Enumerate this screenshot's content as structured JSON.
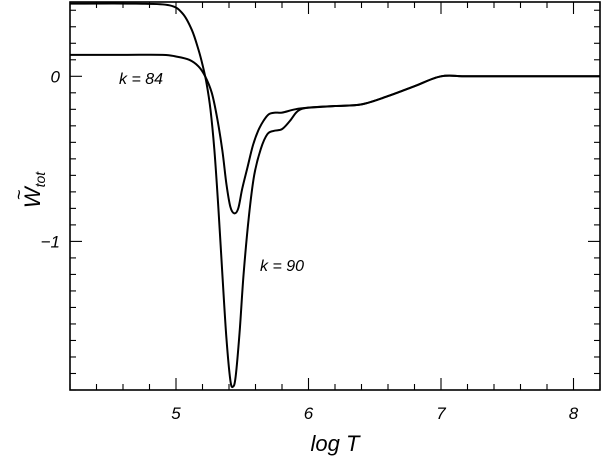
{
  "chart_data": {
    "type": "line",
    "xlabel": "log T",
    "ylabel_main": "W",
    "ylabel_sub": "tot",
    "xlim": [
      4.2,
      8.2
    ],
    "ylim": [
      -1.9,
      0.45
    ],
    "x_ticks": [
      5,
      6,
      7,
      8
    ],
    "y_ticks": [
      {
        "value": 0,
        "label": "0"
      },
      {
        "value": -1,
        "label": "−1"
      }
    ],
    "grid": false,
    "series": [
      {
        "name": "k = 84",
        "x": [
          4.2,
          4.6,
          4.9,
          5.0,
          5.1,
          5.17,
          5.22,
          5.27,
          5.31,
          5.35,
          5.38,
          5.41,
          5.44,
          5.47,
          5.5,
          5.54,
          5.58,
          5.62,
          5.66,
          5.7,
          5.75,
          5.8,
          5.9,
          6.0,
          6.2,
          6.4,
          6.6,
          6.8,
          7.0,
          7.2,
          7.6,
          8.2
        ],
        "y": [
          0.13,
          0.13,
          0.13,
          0.12,
          0.1,
          0.06,
          0.0,
          -0.1,
          -0.25,
          -0.45,
          -0.65,
          -0.79,
          -0.83,
          -0.8,
          -0.68,
          -0.55,
          -0.42,
          -0.33,
          -0.27,
          -0.23,
          -0.22,
          -0.22,
          -0.2,
          -0.19,
          -0.18,
          -0.17,
          -0.12,
          -0.06,
          0.0,
          0.0,
          0.0,
          0.0
        ]
      },
      {
        "name": "k = 90",
        "x": [
          4.2,
          4.7,
          4.95,
          5.05,
          5.12,
          5.17,
          5.2,
          5.23,
          5.26,
          5.29,
          5.32,
          5.35,
          5.38,
          5.41,
          5.43,
          5.45,
          5.48,
          5.51,
          5.55,
          5.59,
          5.64,
          5.69,
          5.74,
          5.8,
          5.86,
          5.92,
          6.0,
          6.2,
          6.4,
          6.6,
          6.8,
          7.0,
          7.2,
          7.6,
          8.2
        ],
        "y": [
          0.44,
          0.44,
          0.43,
          0.38,
          0.28,
          0.16,
          0.07,
          -0.04,
          -0.2,
          -0.45,
          -0.8,
          -1.2,
          -1.58,
          -1.84,
          -1.88,
          -1.82,
          -1.55,
          -1.2,
          -0.85,
          -0.6,
          -0.44,
          -0.35,
          -0.33,
          -0.32,
          -0.27,
          -0.21,
          -0.19,
          -0.18,
          -0.17,
          -0.12,
          -0.06,
          0.0,
          0.0,
          0.0,
          0.0
        ]
      }
    ]
  }
}
